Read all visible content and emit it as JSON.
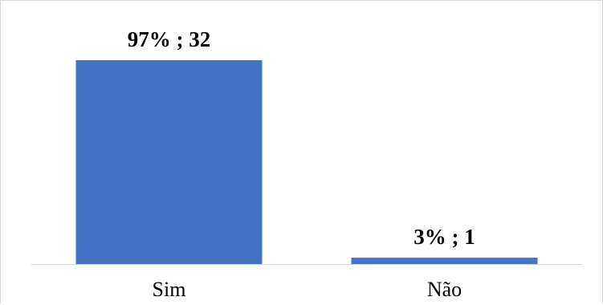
{
  "chart_data": {
    "type": "bar",
    "categories": [
      "Sim",
      "Não"
    ],
    "values": [
      32,
      1
    ],
    "percentages": [
      97,
      3
    ],
    "data_labels": [
      "97% ; 32",
      "3% ; 1"
    ],
    "title": "",
    "xlabel": "",
    "ylabel": "",
    "ylim": [
      0,
      32
    ],
    "grid": false,
    "legend": "none",
    "bar_color": "#4472C4",
    "axis_color": "#d9d9d9"
  }
}
